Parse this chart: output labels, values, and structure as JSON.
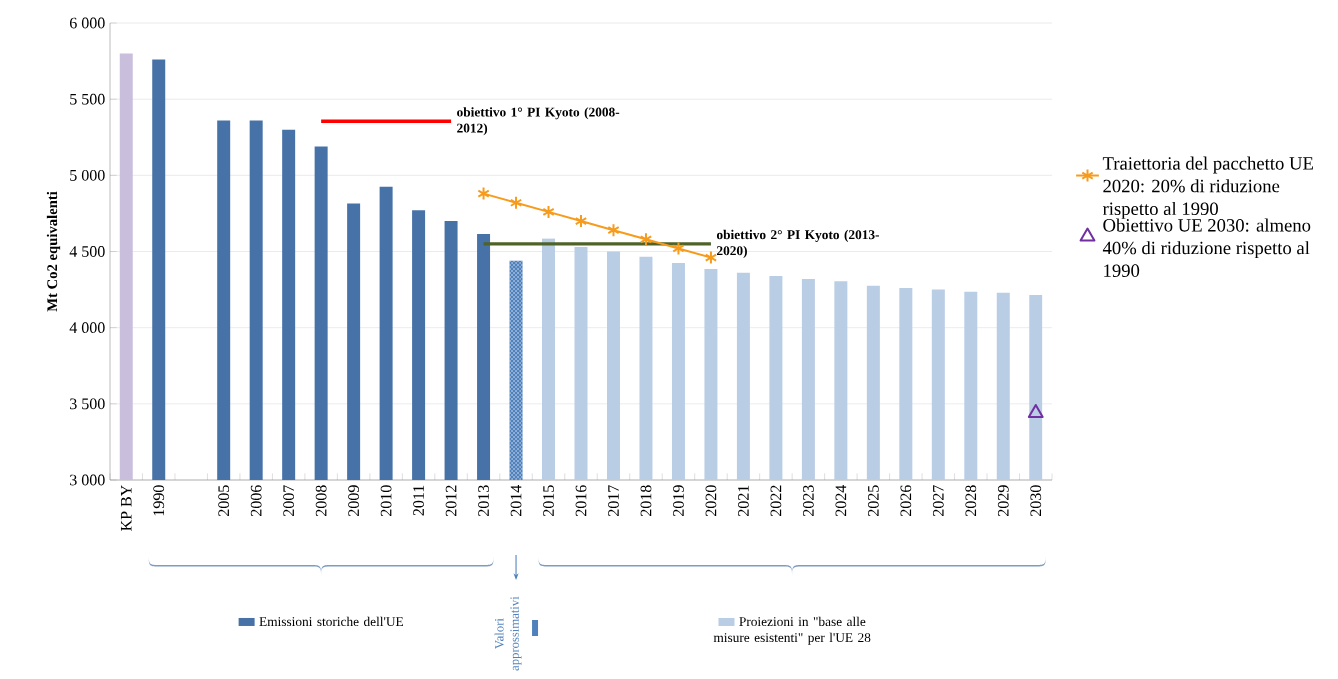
{
  "chart_data": {
    "type": "bar",
    "ylabel": "Mt Co2 equivalenti",
    "categories": [
      "KP BY",
      "1990",
      null,
      "2005",
      "2006",
      "2007",
      "2008",
      "2009",
      "2010",
      "2011",
      "2012",
      "2013",
      "2014",
      "2015",
      "2016",
      "2017",
      "2018",
      "2019",
      "2020",
      "2021",
      "2022",
      "2023",
      "2024",
      "2025",
      "2026",
      "2027",
      "2028",
      "2029",
      "2030"
    ],
    "ylim": [
      3000,
      6000
    ],
    "yticks": [
      {
        "value": 3000,
        "label": "3 000"
      },
      {
        "value": 3500,
        "label": "3 500"
      },
      {
        "value": 4000,
        "label": "4 000"
      },
      {
        "value": 4500,
        "label": "4 500"
      },
      {
        "value": 5000,
        "label": "5 000"
      },
      {
        "value": 5500,
        "label": "5 500"
      },
      {
        "value": 6000,
        "label": "6 000"
      }
    ],
    "grid": "y",
    "legend": "right",
    "series": [
      {
        "color": "#c9bfdc",
        "values": [
          5800,
          null,
          null,
          null,
          null,
          null,
          null,
          null,
          null,
          null,
          null,
          null,
          null,
          null,
          null,
          null,
          null,
          null,
          null,
          null,
          null,
          null,
          null,
          null,
          null,
          null,
          null,
          null,
          null
        ]
      },
      {
        "name": "Emissioni storiche dell'UE",
        "color": "#4672a8",
        "values": [
          null,
          5760,
          null,
          5360,
          5360,
          5300,
          5190,
          4815,
          4925,
          4770,
          4700,
          4615,
          null,
          null,
          null,
          null,
          null,
          null,
          null,
          null,
          null,
          null,
          null,
          null,
          null,
          null,
          null,
          null,
          null
        ]
      },
      {
        "name": "Valori approssimativi",
        "color": "#4f81bd",
        "line_style": "dotted",
        "values": [
          null,
          null,
          null,
          null,
          null,
          null,
          null,
          null,
          null,
          null,
          null,
          null,
          4440,
          null,
          null,
          null,
          null,
          null,
          null,
          null,
          null,
          null,
          null,
          null,
          null,
          null,
          null,
          null,
          null
        ]
      },
      {
        "name": "Proiezioni in \"base alle misure esistenti\" per l'UE 28",
        "color": "#b9cde5",
        "values": [
          null,
          null,
          null,
          null,
          null,
          null,
          null,
          null,
          null,
          null,
          null,
          null,
          null,
          4585,
          4530,
          4500,
          4465,
          4425,
          4385,
          4360,
          4340,
          4320,
          4305,
          4275,
          4260,
          4250,
          4235,
          4230,
          4215
        ]
      },
      {
        "type": "line",
        "name": "obiettivo 1° PI Kyoto (2008-2012)",
        "color": "#ff0000",
        "marker": "none",
        "values": [
          null,
          null,
          null,
          null,
          null,
          null,
          5355,
          5355,
          5355,
          5355,
          5355,
          null,
          null,
          null,
          null,
          null,
          null,
          null,
          null,
          null,
          null,
          null,
          null,
          null,
          null,
          null,
          null,
          null,
          null
        ]
      },
      {
        "type": "line",
        "name": "obiettivo 2° PI Kyoto (2013-2020)",
        "color": "#4f6228",
        "marker": "none",
        "values": [
          null,
          null,
          null,
          null,
          null,
          null,
          null,
          null,
          null,
          null,
          null,
          4550,
          4550,
          4550,
          4550,
          4550,
          4550,
          4550,
          4550,
          null,
          null,
          null,
          null,
          null,
          null,
          null,
          null,
          null,
          null
        ]
      },
      {
        "type": "line",
        "name": "Traiettoria del pacchetto UE 2020: 20% di riduzione rispetto al 1990",
        "color": "#f79b1c",
        "marker": "cross",
        "values": [
          null,
          null,
          null,
          null,
          null,
          null,
          null,
          null,
          null,
          null,
          null,
          4880,
          4820,
          4760,
          4700,
          4640,
          4580,
          4520,
          4460,
          null,
          null,
          null,
          null,
          null,
          null,
          null,
          null,
          null,
          null
        ]
      },
      {
        "type": "scatter",
        "name": "Obiettivo UE 2030: almeno 40% di riduzione rispetto al 1990",
        "color": "#7030a0",
        "marker": "triangle",
        "values": [
          null,
          null,
          null,
          null,
          null,
          null,
          null,
          null,
          null,
          null,
          null,
          null,
          null,
          null,
          null,
          null,
          null,
          null,
          null,
          null,
          null,
          null,
          null,
          null,
          null,
          null,
          null,
          null,
          3440
        ]
      }
    ]
  }
}
